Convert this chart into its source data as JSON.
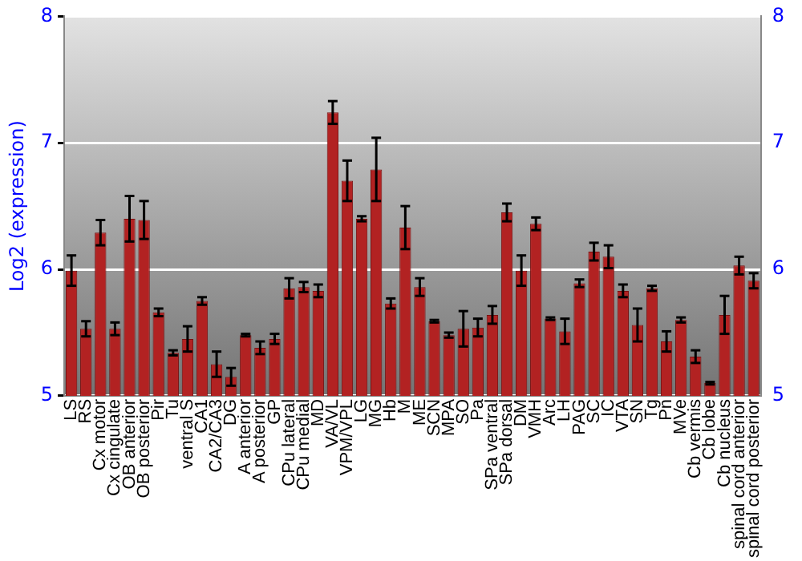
{
  "chart_data": {
    "type": "bar",
    "ylabel": "Log2 (expression)",
    "categories": [
      "LS",
      "RS",
      "Cx motor",
      "Cx cingulate",
      "OB anterior",
      "OB posterior",
      "Pir",
      "Tu",
      "ventral S",
      "CA1",
      "CA2/CA3",
      "DG",
      "A anterior",
      "A posterior",
      "GP",
      "CPu lateral",
      "CPu medial",
      "MD",
      "VA/VL",
      "VPM/VPL",
      "LG",
      "MG",
      "Hb",
      "M",
      "ME",
      "SCN",
      "MPA",
      "SO",
      "Pa",
      "SPa ventral",
      "SPa dorsal",
      "DM",
      "VMH",
      "Arc",
      "LH",
      "PAG",
      "SC",
      "IC",
      "VTA",
      "SN",
      "Tg",
      "Pn",
      "MVe",
      "Cb vermis",
      "Cb lobe",
      "Cb nucleus",
      "spinal cord anterior",
      "spinal cord posterior"
    ],
    "values": [
      5.99,
      5.53,
      6.29,
      5.53,
      6.4,
      6.39,
      5.66,
      5.34,
      5.45,
      5.75,
      5.25,
      5.15,
      5.48,
      5.38,
      5.45,
      5.85,
      5.86,
      5.83,
      7.24,
      6.7,
      6.4,
      6.79,
      5.73,
      6.33,
      5.86,
      5.59,
      5.48,
      5.53,
      5.54,
      5.64,
      6.45,
      5.99,
      6.36,
      5.61,
      5.51,
      5.89,
      6.14,
      6.1,
      5.83,
      5.56,
      5.85,
      5.43,
      5.6,
      5.31,
      5.1,
      5.64,
      6.03,
      5.91
    ],
    "errors": [
      0.12,
      0.06,
      0.1,
      0.05,
      0.18,
      0.15,
      0.03,
      0.02,
      0.1,
      0.03,
      0.1,
      0.07,
      0.01,
      0.05,
      0.04,
      0.08,
      0.04,
      0.05,
      0.09,
      0.16,
      0.02,
      0.25,
      0.04,
      0.17,
      0.07,
      0.01,
      0.02,
      0.14,
      0.07,
      0.07,
      0.07,
      0.12,
      0.05,
      0.01,
      0.1,
      0.03,
      0.07,
      0.09,
      0.05,
      0.13,
      0.02,
      0.08,
      0.02,
      0.05,
      0.01,
      0.15,
      0.07,
      0.06
    ],
    "color": "#b22222",
    "ylim": [
      5,
      8
    ],
    "yticks": [
      5,
      6,
      7,
      8
    ],
    "y2lim": [
      5,
      8
    ],
    "y2ticks": [
      5,
      6,
      7,
      8
    ],
    "grid": "y",
    "legend": false
  }
}
